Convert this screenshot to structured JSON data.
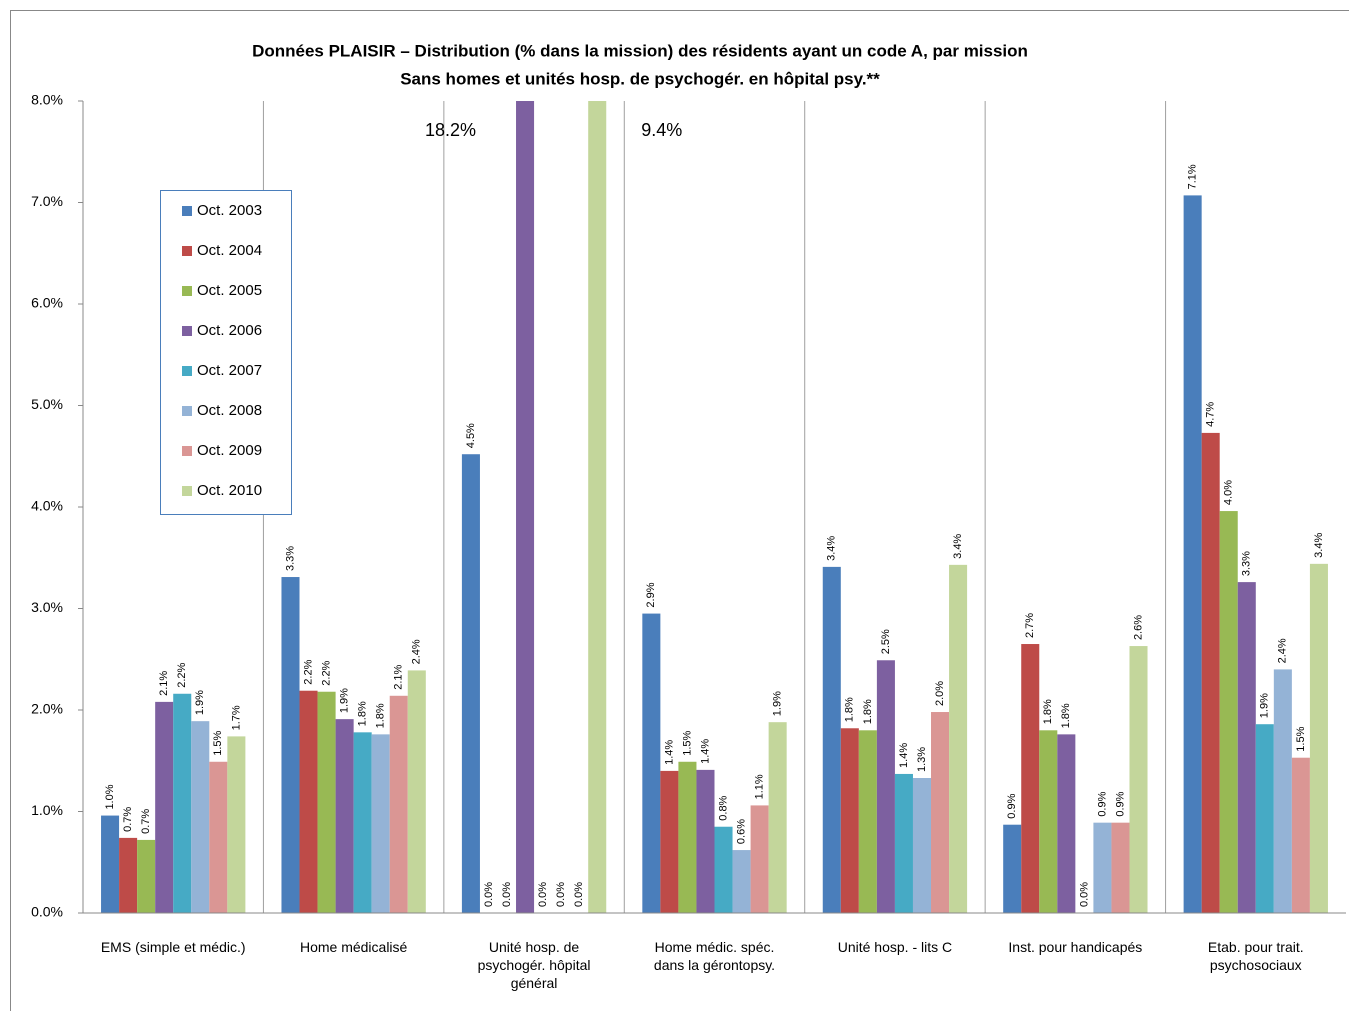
{
  "chart_data": {
    "type": "bar",
    "title": "Données PLAISIR – Distribution (% dans la mission) des résidents ayant un code A, par mission",
    "subtitle": "Sans homes et unités hosp. de psychogér. en hôpital psy.**",
    "categories": [
      "EMS (simple et médic.)",
      "Home médicalisé",
      "Unité hosp. de\npsychogér. hôpital\ngénéral",
      "Home médic. spéc.\ndans la gérontopsy.",
      "Unité hosp. - lits C",
      "Inst. pour handicapés",
      "Etab. pour trait.\npsychosociaux"
    ],
    "series": [
      {
        "name": "Oct. 2003",
        "color": "#4a7ebb",
        "values": [
          0.96,
          3.31,
          4.52,
          2.95,
          3.41,
          0.87,
          7.07
        ],
        "value_labels": [
          "1.0%",
          "3.3%",
          "4.5%",
          "2.9%",
          "3.4%",
          "0.9%",
          "7.1%"
        ]
      },
      {
        "name": "Oct. 2004",
        "color": "#be4b48",
        "values": [
          0.74,
          2.19,
          0,
          1.4,
          1.82,
          2.65,
          4.73
        ],
        "value_labels": [
          "0.7%",
          "2.2%",
          "0.0%",
          "1.4%",
          "1.8%",
          "2.7%",
          "4.7%"
        ]
      },
      {
        "name": "Oct. 2005",
        "color": "#98b954",
        "values": [
          0.72,
          2.18,
          0,
          1.49,
          1.8,
          1.8,
          3.96
        ],
        "value_labels": [
          "0.7%",
          "2.2%",
          "0.0%",
          "1.5%",
          "1.8%",
          "1.8%",
          "4.0%"
        ]
      },
      {
        "name": "Oct. 2006",
        "color": "#7d60a0",
        "values": [
          2.08,
          1.91,
          18.2,
          1.41,
          2.49,
          1.76,
          3.26
        ],
        "value_labels": [
          "2.1%",
          "1.9%",
          "18.2%",
          "1.4%",
          "2.5%",
          "1.8%",
          "3.3%"
        ]
      },
      {
        "name": "Oct. 2007",
        "color": "#46aac5",
        "values": [
          2.16,
          1.78,
          0,
          0.85,
          1.37,
          0,
          1.86
        ],
        "value_labels": [
          "2.2%",
          "1.8%",
          "0.0%",
          "0.8%",
          "1.4%",
          "0.0%",
          "1.9%"
        ]
      },
      {
        "name": "Oct. 2008",
        "color": "#94b3d6",
        "values": [
          1.89,
          1.76,
          0,
          0.62,
          1.33,
          0.89,
          2.4
        ],
        "value_labels": [
          "1.9%",
          "1.8%",
          "0.0%",
          "0.6%",
          "1.3%",
          "0.9%",
          "2.4%"
        ]
      },
      {
        "name": "Oct. 2009",
        "color": "#da9694",
        "values": [
          1.49,
          2.14,
          0,
          1.06,
          1.98,
          0.89,
          1.53
        ],
        "value_labels": [
          "1.5%",
          "2.1%",
          "0.0%",
          "1.1%",
          "2.0%",
          "0.9%",
          "1.5%"
        ]
      },
      {
        "name": "Oct. 2010",
        "color": "#c3d69b",
        "values": [
          1.74,
          2.39,
          9.4,
          1.88,
          3.43,
          2.63,
          3.44
        ],
        "value_labels": [
          "1.7%",
          "2.4%",
          "9.4%",
          "1.9%",
          "3.4%",
          "2.6%",
          "3.4%"
        ]
      }
    ],
    "ylim": [
      0,
      8
    ],
    "yticks": [
      {
        "value": 0,
        "label": "0.0%"
      },
      {
        "value": 1,
        "label": "1.0%"
      },
      {
        "value": 2,
        "label": "2.0%"
      },
      {
        "value": 3,
        "label": "3.0%"
      },
      {
        "value": 4,
        "label": "4.0%"
      },
      {
        "value": 5,
        "label": "5.0%"
      },
      {
        "value": 6,
        "label": "6.0%"
      },
      {
        "value": 7,
        "label": "7.0%"
      },
      {
        "value": 8,
        "label": "8.0%"
      }
    ],
    "legend": "upper left"
  }
}
